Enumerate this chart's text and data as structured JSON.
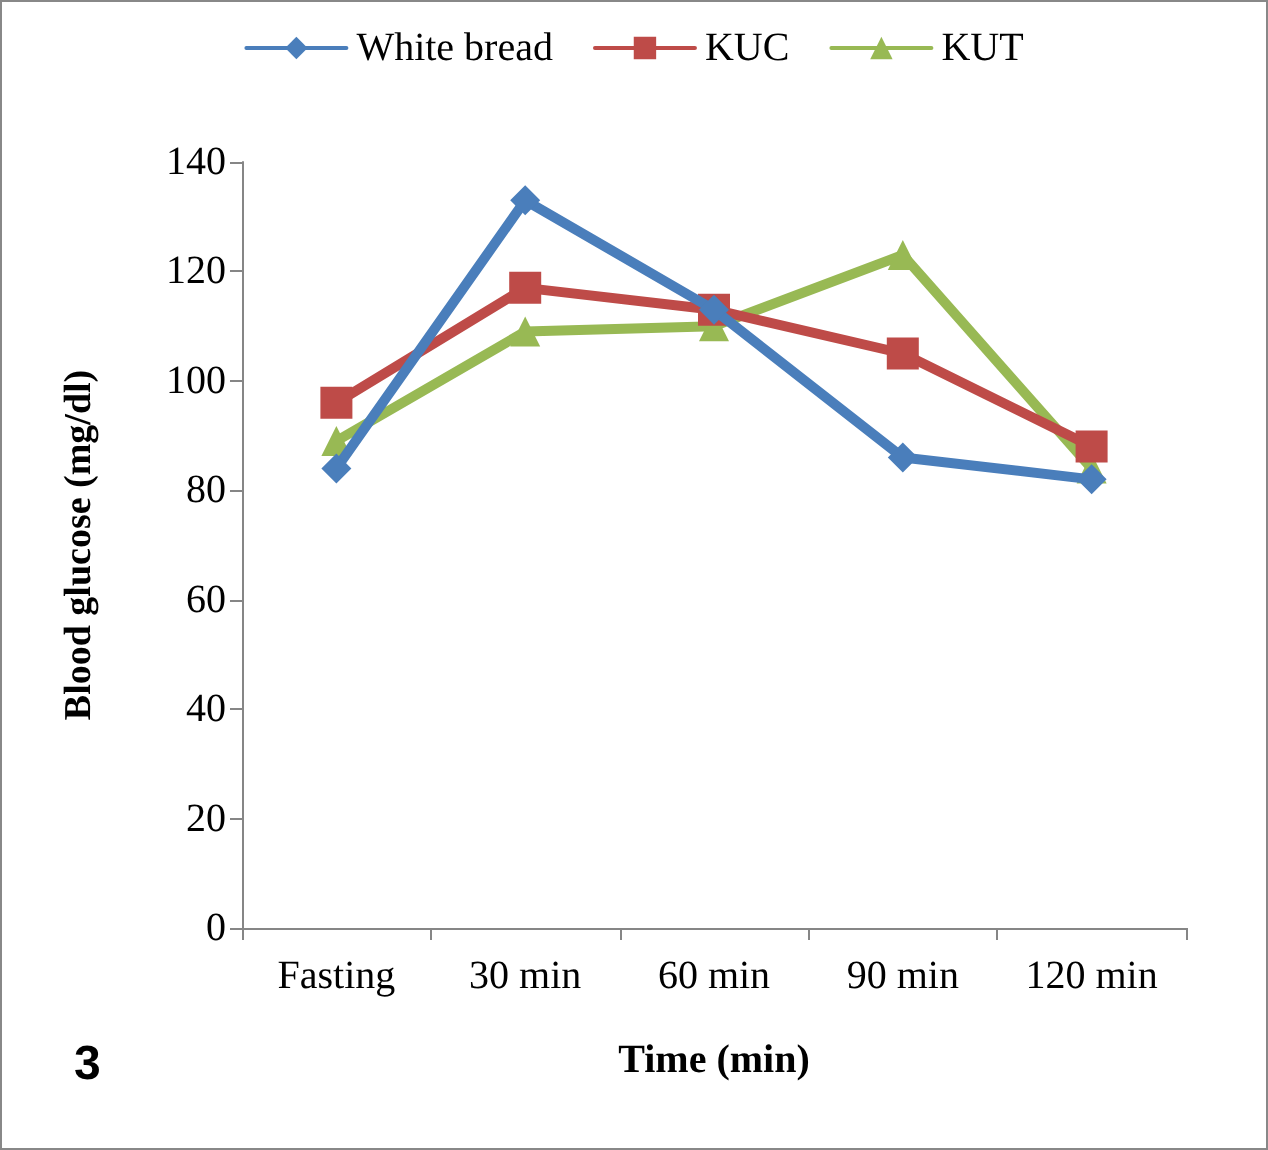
{
  "chart_data": {
    "type": "line",
    "xlabel": "Time (min)",
    "ylabel": "Blood glucose (mg/dl)",
    "categories": [
      "Fasting",
      "30 min",
      "60 min",
      "90 min",
      "120 min"
    ],
    "series": [
      {
        "name": "White bread",
        "color": "#4a7ebb",
        "marker": "diamond",
        "values": [
          84,
          133,
          113,
          86,
          82
        ]
      },
      {
        "name": "KUC",
        "color": "#be4b48",
        "marker": "square",
        "values": [
          96,
          117,
          113,
          105,
          88
        ]
      },
      {
        "name": "KUT",
        "color": "#98b954",
        "marker": "triangle",
        "values": [
          89,
          109,
          110,
          123,
          84
        ]
      }
    ],
    "ylim": [
      0,
      140
    ],
    "yticks": [
      0,
      20,
      40,
      60,
      80,
      100,
      120,
      140
    ],
    "annotations": [
      "3"
    ],
    "legend": "top",
    "grid": false,
    "line_style": "solid"
  }
}
